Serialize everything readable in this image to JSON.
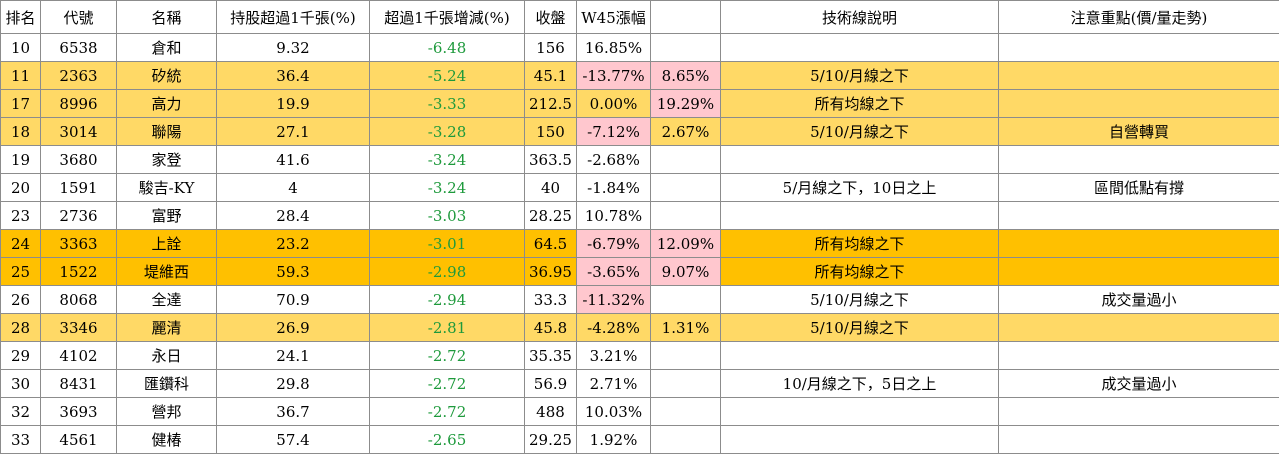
{
  "headers": [
    "排名",
    "代號",
    "名稱",
    "持股超過1千張(%)",
    "超過1千張增減(%)",
    "收盤",
    "W45漲幅",
    "",
    "技術線說明",
    "注意重點(價/量走勢)"
  ],
  "rows": [
    {
      "rank": "10",
      "code": "6538",
      "name": "倉和",
      "pct": "9.32",
      "change": "-6.48",
      "close": "156",
      "w45": "16.85%",
      "extra": "",
      "tech": "",
      "note": ""
    },
    {
      "rank": "11",
      "code": "2363",
      "name": "矽統",
      "pct": "36.4",
      "change": "-5.24",
      "close": "45.1",
      "w45": "-13.77%",
      "extra": "8.65%",
      "tech": "5/10/月線之下",
      "note": ""
    },
    {
      "rank": "17",
      "code": "8996",
      "name": "高力",
      "pct": "19.9",
      "change": "-3.33",
      "close": "212.5",
      "w45": "0.00%",
      "extra": "19.29%",
      "tech": "所有均線之下",
      "note": ""
    },
    {
      "rank": "18",
      "code": "3014",
      "name": "聯陽",
      "pct": "27.1",
      "change": "-3.28",
      "close": "150",
      "w45": "-7.12%",
      "extra": "2.67%",
      "tech": "5/10/月線之下",
      "note": "自營轉買"
    },
    {
      "rank": "19",
      "code": "3680",
      "name": "家登",
      "pct": "41.6",
      "change": "-3.24",
      "close": "363.5",
      "w45": "-2.68%",
      "extra": "",
      "tech": "",
      "note": ""
    },
    {
      "rank": "20",
      "code": "1591",
      "name": "駿吉-KY",
      "pct": "4",
      "change": "-3.24",
      "close": "40",
      "w45": "-1.84%",
      "extra": "",
      "tech": "5/月線之下，10日之上",
      "note": "區間低點有撐"
    },
    {
      "rank": "23",
      "code": "2736",
      "name": "富野",
      "pct": "28.4",
      "change": "-3.03",
      "close": "28.25",
      "w45": "10.78%",
      "extra": "",
      "tech": "",
      "note": ""
    },
    {
      "rank": "24",
      "code": "3363",
      "name": "上詮",
      "pct": "23.2",
      "change": "-3.01",
      "close": "64.5",
      "w45": "-6.79%",
      "extra": "12.09%",
      "tech": "所有均線之下",
      "note": ""
    },
    {
      "rank": "25",
      "code": "1522",
      "name": "堤維西",
      "pct": "59.3",
      "change": "-2.98",
      "close": "36.95",
      "w45": "-3.65%",
      "extra": "9.07%",
      "tech": "所有均線之下",
      "note": ""
    },
    {
      "rank": "26",
      "code": "8068",
      "name": "全達",
      "pct": "70.9",
      "change": "-2.94",
      "close": "33.3",
      "w45": "-11.32%",
      "extra": "",
      "tech": "5/10/月線之下",
      "note": "成交量過小"
    },
    {
      "rank": "28",
      "code": "3346",
      "name": "麗清",
      "pct": "26.9",
      "change": "-2.81",
      "close": "45.8",
      "w45": "-4.28%",
      "extra": "1.31%",
      "tech": "5/10/月線之下",
      "note": ""
    },
    {
      "rank": "29",
      "code": "4102",
      "name": "永日",
      "pct": "24.1",
      "change": "-2.72",
      "close": "35.35",
      "w45": "3.21%",
      "extra": "",
      "tech": "",
      "note": ""
    },
    {
      "rank": "30",
      "code": "8431",
      "name": "匯鑽科",
      "pct": "29.8",
      "change": "-2.72",
      "close": "56.9",
      "w45": "2.71%",
      "extra": "",
      "tech": "10/月線之下，5日之上",
      "note": "成交量過小"
    },
    {
      "rank": "32",
      "code": "3693",
      "name": "營邦",
      "pct": "36.7",
      "change": "-2.72",
      "close": "488",
      "w45": "10.03%",
      "extra": "",
      "tech": "",
      "note": ""
    },
    {
      "rank": "33",
      "code": "4561",
      "name": "健椿",
      "pct": "57.4",
      "change": "-2.65",
      "close": "29.25",
      "w45": "1.92%",
      "extra": "",
      "tech": "",
      "note": ""
    }
  ],
  "colors": {
    "highlight_light": "#ffd966",
    "highlight_dark": "#ffc000",
    "negative_text": "#1e9a3c",
    "pink_cell": "#ffc7ce"
  }
}
